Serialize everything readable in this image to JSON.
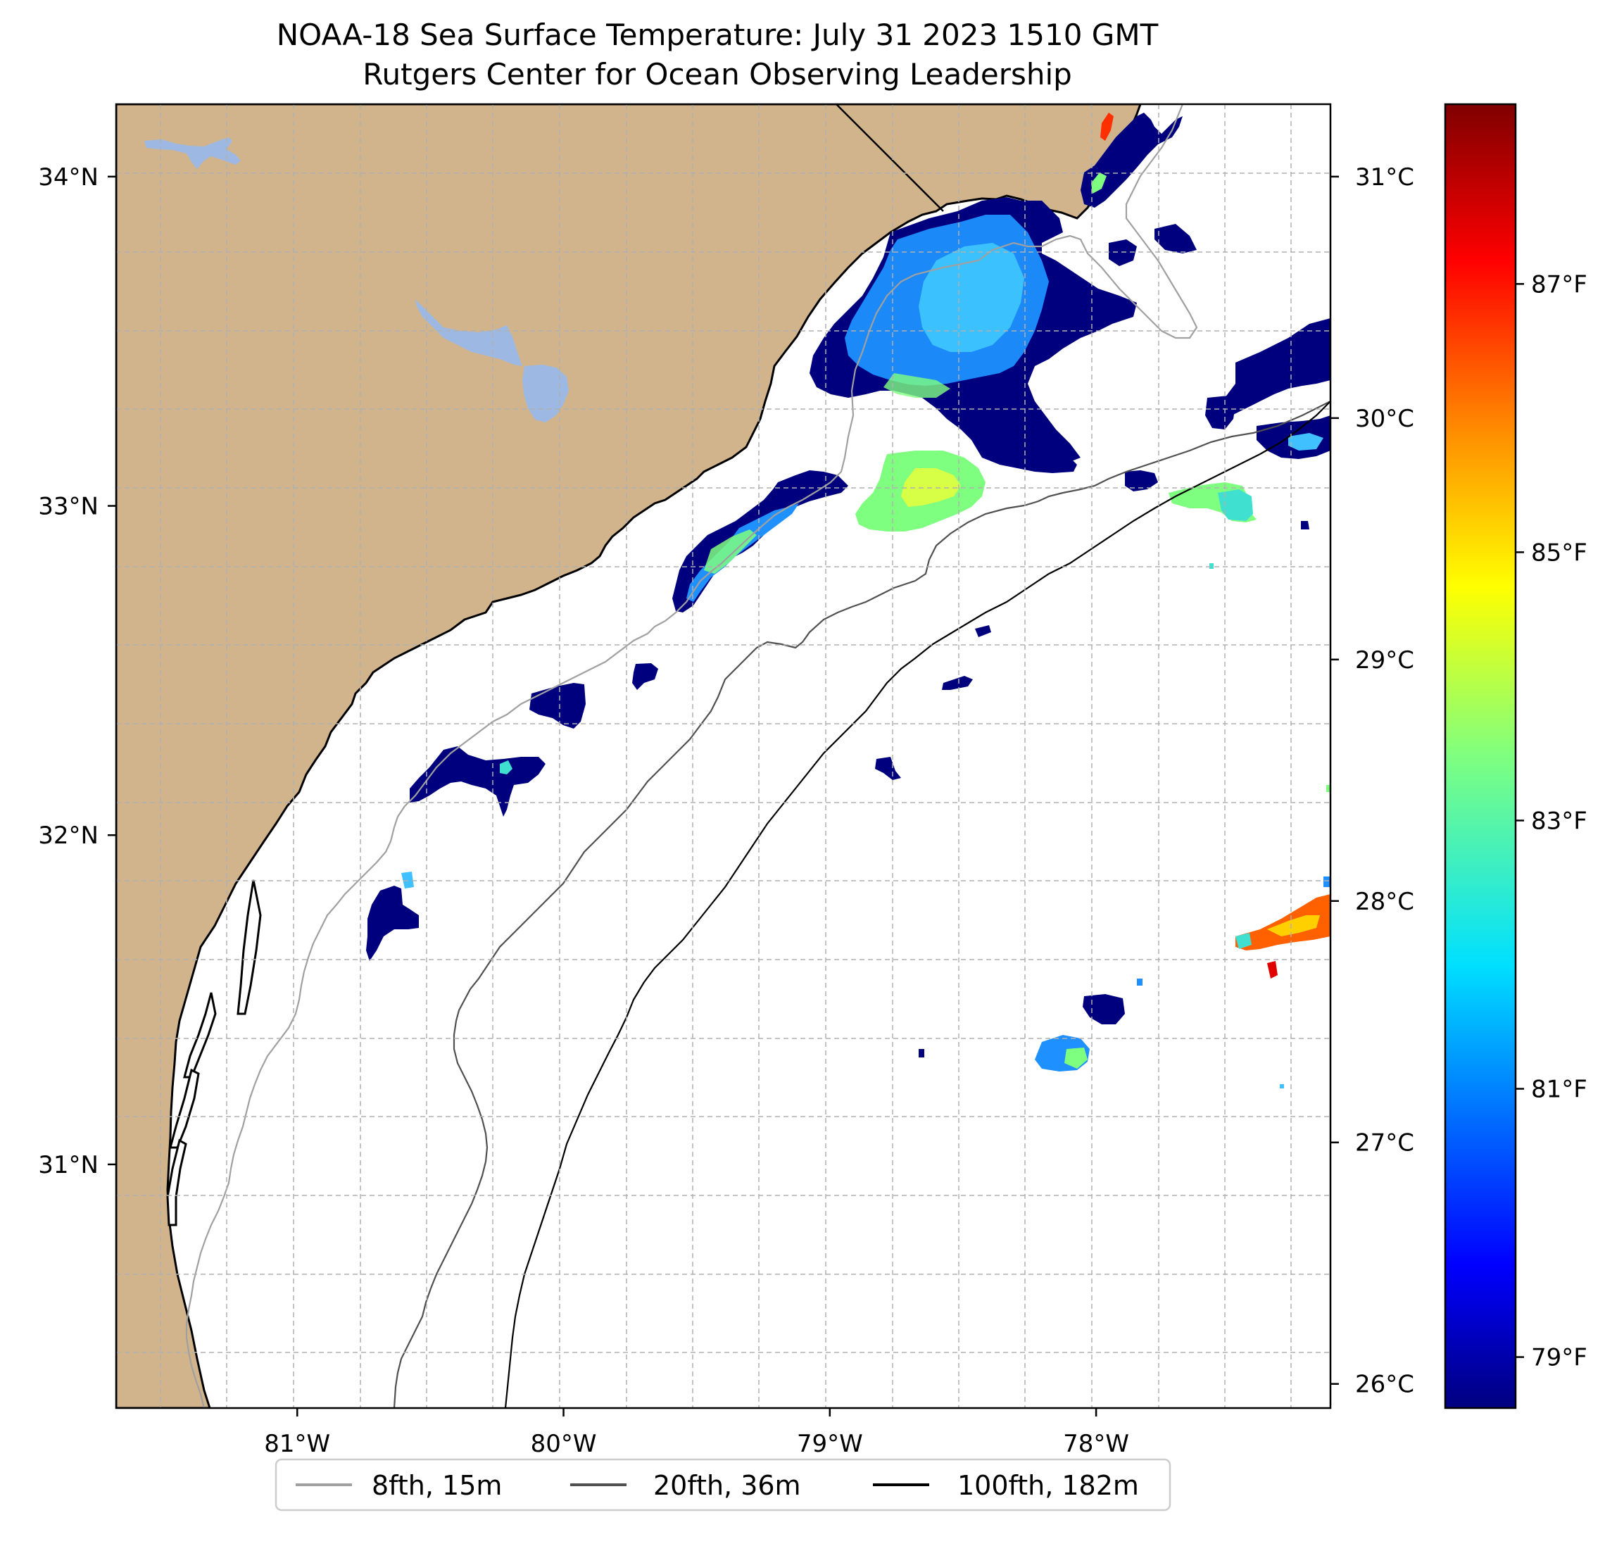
{
  "title": {
    "line1": "NOAA-18 Sea Surface Temperature: July 31 2023 1510 GMT",
    "line2": "Rutgers Center for Ocean Observing Leadership"
  },
  "map": {
    "lon_range": [
      -81.68,
      -77.12
    ],
    "lat_range": [
      30.26,
      34.22
    ],
    "x_ticks": [
      {
        "lon": -81,
        "label": "81°W"
      },
      {
        "lon": -80,
        "label": "80°W"
      },
      {
        "lon": -79,
        "label": "79°W"
      },
      {
        "lon": -78,
        "label": "78°W"
      }
    ],
    "y_ticks": [
      {
        "lat": 34,
        "label": "34°N"
      },
      {
        "lat": 33,
        "label": "33°N"
      },
      {
        "lat": 32,
        "label": "32°N"
      },
      {
        "lat": 31,
        "label": "31°N"
      }
    ],
    "colors": {
      "land": "#d2b48c",
      "water_bodies": "#9db9e3",
      "grid": "#b0b0b0",
      "ocean": "#ffffff"
    }
  },
  "colorbar": {
    "min_c": 25.9,
    "max_c": 31.3,
    "celsius_ticks": [
      {
        "value": 26,
        "label": "26°C"
      },
      {
        "value": 27,
        "label": "27°C"
      },
      {
        "value": 28,
        "label": "28°C"
      },
      {
        "value": 29,
        "label": "29°C"
      },
      {
        "value": 30,
        "label": "30°C"
      },
      {
        "value": 31,
        "label": "31°C"
      }
    ],
    "fahrenheit_ticks": [
      {
        "value": 79,
        "label": "79°F"
      },
      {
        "value": 81,
        "label": "81°F"
      },
      {
        "value": 83,
        "label": "83°F"
      },
      {
        "value": 85,
        "label": "85°F"
      },
      {
        "value": 87,
        "label": "87°F"
      }
    ],
    "colormap": [
      "#00007f",
      "#0000ff",
      "#007fff",
      "#00ffff",
      "#7fff7f",
      "#ffff00",
      "#ff7f00",
      "#ff0000",
      "#7f0000"
    ]
  },
  "legend": {
    "items": [
      {
        "label": "8fth, 15m",
        "color": "#a0a0a0"
      },
      {
        "label": "20fth, 36m",
        "color": "#505050"
      },
      {
        "label": "100fth, 182m",
        "color": "#000000"
      }
    ]
  }
}
